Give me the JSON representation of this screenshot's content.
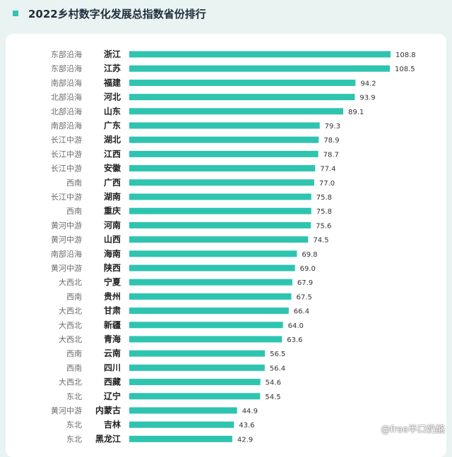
{
  "header": {
    "title": "2022乡村数字化发展总指数省份排行",
    "accent_color": "#2ec4b0"
  },
  "watermark": "@free半口奶酪",
  "chart_data": {
    "type": "bar",
    "orientation": "horizontal",
    "title": "2022乡村数字化发展总指数省份排行",
    "bar_color": "#2ec4b0",
    "xlim": [
      0,
      115
    ],
    "grid": false,
    "rows": [
      {
        "region": "东部沿海",
        "province": "浙江",
        "value": 108.8,
        "value_label": "108.8"
      },
      {
        "region": "东部沿海",
        "province": "江苏",
        "value": 108.5,
        "value_label": "108.5"
      },
      {
        "region": "南部沿海",
        "province": "福建",
        "value": 94.2,
        "value_label": "94.2"
      },
      {
        "region": "北部沿海",
        "province": "河北",
        "value": 93.9,
        "value_label": "93.9"
      },
      {
        "region": "北部沿海",
        "province": "山东",
        "value": 89.1,
        "value_label": "89.1"
      },
      {
        "region": "南部沿海",
        "province": "广东",
        "value": 79.3,
        "value_label": "79.3"
      },
      {
        "region": "长江中游",
        "province": "湖北",
        "value": 78.9,
        "value_label": "78.9"
      },
      {
        "region": "长江中游",
        "province": "江西",
        "value": 78.7,
        "value_label": "78.7"
      },
      {
        "region": "长江中游",
        "province": "安徽",
        "value": 77.4,
        "value_label": "77.4"
      },
      {
        "region": "西南",
        "province": "广西",
        "value": 77.0,
        "value_label": "77.0"
      },
      {
        "region": "长江中游",
        "province": "湖南",
        "value": 75.8,
        "value_label": "75.8"
      },
      {
        "region": "西南",
        "province": "重庆",
        "value": 75.8,
        "value_label": "75.8"
      },
      {
        "region": "黄河中游",
        "province": "河南",
        "value": 75.6,
        "value_label": "75.6"
      },
      {
        "region": "黄河中游",
        "province": "山西",
        "value": 74.5,
        "value_label": "74.5"
      },
      {
        "region": "南部沿海",
        "province": "海南",
        "value": 69.8,
        "value_label": "69.8"
      },
      {
        "region": "黄河中游",
        "province": "陕西",
        "value": 69.0,
        "value_label": "69.0"
      },
      {
        "region": "大西北",
        "province": "宁夏",
        "value": 67.9,
        "value_label": "67.9"
      },
      {
        "region": "西南",
        "province": "贵州",
        "value": 67.5,
        "value_label": "67.5"
      },
      {
        "region": "大西北",
        "province": "甘肃",
        "value": 66.4,
        "value_label": "66.4"
      },
      {
        "region": "大西北",
        "province": "新疆",
        "value": 64.0,
        "value_label": "64.0"
      },
      {
        "region": "大西北",
        "province": "青海",
        "value": 63.6,
        "value_label": "63.6"
      },
      {
        "region": "西南",
        "province": "云南",
        "value": 56.5,
        "value_label": "56.5"
      },
      {
        "region": "西南",
        "province": "四川",
        "value": 56.4,
        "value_label": "56.4"
      },
      {
        "region": "大西北",
        "province": "西藏",
        "value": 54.6,
        "value_label": "54.6"
      },
      {
        "region": "东北",
        "province": "辽宁",
        "value": 54.5,
        "value_label": "54.5"
      },
      {
        "region": "黄河中游",
        "province": "内蒙古",
        "value": 44.9,
        "value_label": "44.9"
      },
      {
        "region": "东北",
        "province": "吉林",
        "value": 43.6,
        "value_label": "43.6"
      },
      {
        "region": "东北",
        "province": "黑龙江",
        "value": 42.9,
        "value_label": "42.9"
      }
    ]
  }
}
